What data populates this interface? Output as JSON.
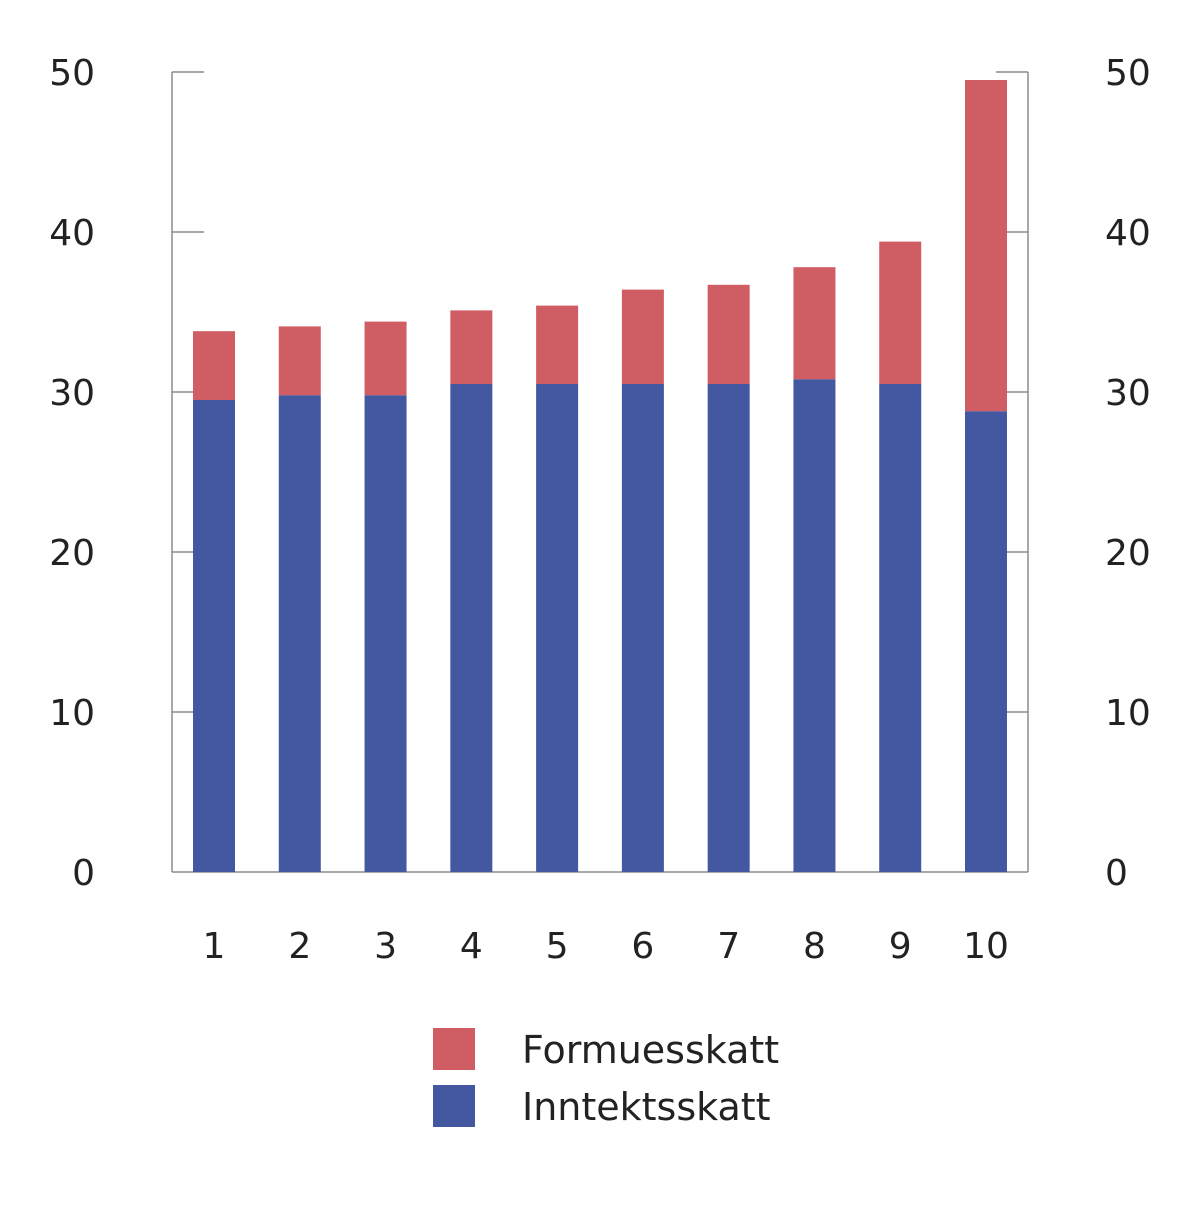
{
  "chart_data": {
    "type": "bar",
    "stacked": true,
    "categories": [
      "1",
      "2",
      "3",
      "4",
      "5",
      "6",
      "7",
      "8",
      "9",
      "10"
    ],
    "series": [
      {
        "name": "Inntektsskatt",
        "color": "#4457a1",
        "values": [
          29.5,
          29.8,
          29.8,
          30.5,
          30.5,
          30.5,
          30.5,
          30.8,
          30.5,
          28.8
        ]
      },
      {
        "name": "Formuesskatt",
        "color": "#d05c64",
        "values": [
          4.3,
          4.3,
          4.6,
          4.6,
          4.9,
          5.9,
          6.2,
          7.0,
          8.9,
          20.7
        ]
      }
    ],
    "ylim": [
      0,
      50
    ],
    "yticks": [
      "0",
      "10",
      "20",
      "30",
      "40",
      "50"
    ],
    "secondary_y_axis": true,
    "title": "",
    "xlabel": "",
    "ylabel": "",
    "legend_position": "bottom-center",
    "grid": false
  }
}
